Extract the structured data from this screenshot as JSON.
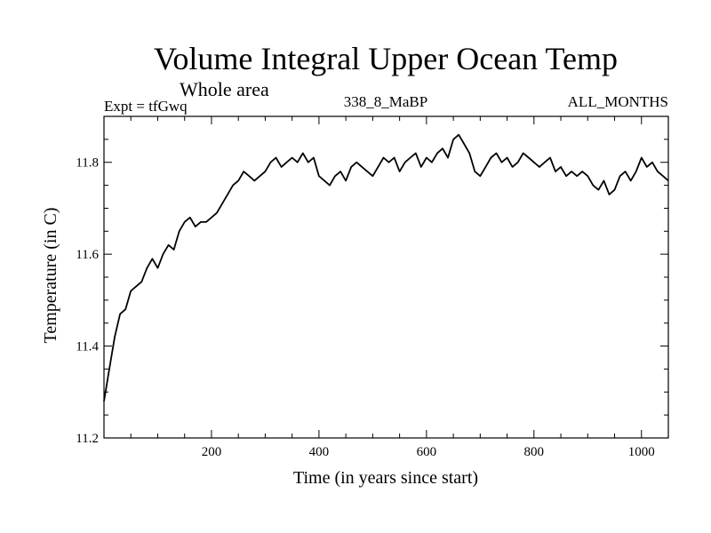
{
  "chart_data": {
    "type": "line",
    "title": "Volume Integral Upper Ocean Temp",
    "subtitle": "Whole area",
    "left_label": "Expt = tfGwq",
    "center_label": "338_8_MaBP",
    "right_label": "ALL_MONTHS",
    "xlabel": "Time (in years since start)",
    "ylabel": "Temperature (in C)",
    "xlim": [
      0,
      1050
    ],
    "ylim": [
      11.2,
      11.9
    ],
    "xticks": [
      200,
      400,
      600,
      800,
      1000
    ],
    "xtick_labels": [
      "200",
      "400",
      "600",
      "800",
      "1000"
    ],
    "yticks": [
      11.2,
      11.4,
      11.6,
      11.8
    ],
    "ytick_labels": [
      "11.2",
      "11.4",
      "11.6",
      "11.8"
    ],
    "grid": false,
    "series": [
      {
        "name": "Temperature",
        "color": "#000000",
        "x": [
          0,
          10,
          20,
          30,
          40,
          50,
          60,
          70,
          80,
          90,
          100,
          110,
          120,
          130,
          140,
          150,
          160,
          170,
          180,
          190,
          200,
          210,
          220,
          230,
          240,
          250,
          260,
          270,
          280,
          290,
          300,
          310,
          320,
          330,
          340,
          350,
          360,
          370,
          380,
          390,
          400,
          410,
          420,
          430,
          440,
          450,
          460,
          470,
          480,
          490,
          500,
          510,
          520,
          530,
          540,
          550,
          560,
          570,
          580,
          590,
          600,
          610,
          620,
          630,
          640,
          650,
          660,
          670,
          680,
          690,
          700,
          710,
          720,
          730,
          740,
          750,
          760,
          770,
          780,
          790,
          800,
          810,
          820,
          830,
          840,
          850,
          860,
          870,
          880,
          890,
          900,
          910,
          920,
          930,
          940,
          950,
          960,
          970,
          980,
          990,
          1000,
          1010,
          1020,
          1030,
          1040,
          1050
        ],
        "values": [
          11.28,
          11.35,
          11.42,
          11.47,
          11.48,
          11.52,
          11.53,
          11.54,
          11.57,
          11.59,
          11.57,
          11.6,
          11.62,
          11.61,
          11.65,
          11.67,
          11.68,
          11.66,
          11.67,
          11.67,
          11.68,
          11.69,
          11.71,
          11.73,
          11.75,
          11.76,
          11.78,
          11.77,
          11.76,
          11.77,
          11.78,
          11.8,
          11.81,
          11.79,
          11.8,
          11.81,
          11.8,
          11.82,
          11.8,
          11.81,
          11.77,
          11.76,
          11.75,
          11.77,
          11.78,
          11.76,
          11.79,
          11.8,
          11.79,
          11.78,
          11.77,
          11.79,
          11.81,
          11.8,
          11.81,
          11.78,
          11.8,
          11.81,
          11.82,
          11.79,
          11.81,
          11.8,
          11.82,
          11.83,
          11.81,
          11.85,
          11.86,
          11.84,
          11.82,
          11.78,
          11.77,
          11.79,
          11.81,
          11.82,
          11.8,
          11.81,
          11.79,
          11.8,
          11.82,
          11.81,
          11.8,
          11.79,
          11.8,
          11.81,
          11.78,
          11.79,
          11.77,
          11.78,
          11.77,
          11.78,
          11.77,
          11.75,
          11.74,
          11.76,
          11.73,
          11.74,
          11.77,
          11.78,
          11.76,
          11.78,
          11.81,
          11.79,
          11.8,
          11.78,
          11.77,
          11.76
        ]
      }
    ]
  }
}
